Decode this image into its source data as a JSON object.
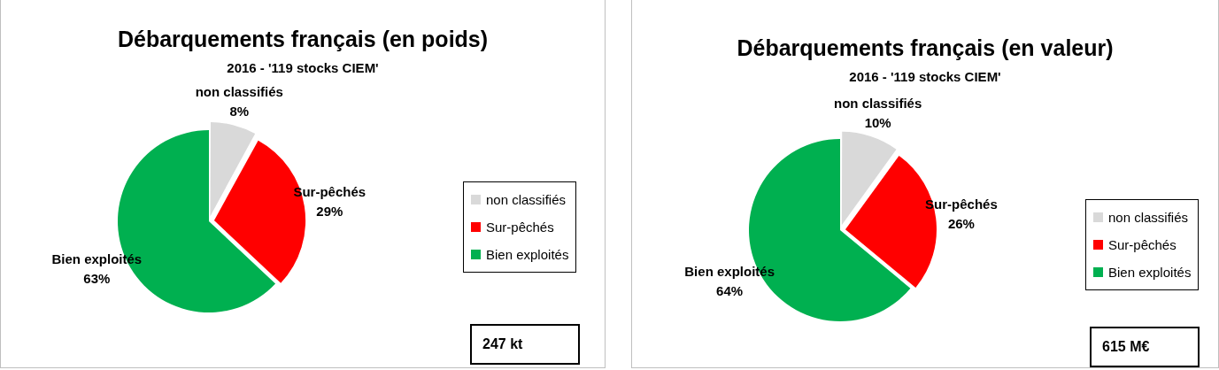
{
  "chart_data": [
    {
      "type": "pie",
      "title": "Débarquements français (en poids)",
      "subtitle": "2016 - '119 stocks CIEM'",
      "categories": [
        "non classifiés",
        "Sur-pêchés",
        "Bien exploités"
      ],
      "values": [
        8,
        29,
        63
      ],
      "value_labels": [
        "8%",
        "29%",
        "63%"
      ],
      "colors": [
        "#d9d9d9",
        "#ff0000",
        "#00b050"
      ],
      "legend": "right",
      "annotations": [
        "247 kt"
      ]
    },
    {
      "type": "pie",
      "title": "Débarquements français (en valeur)",
      "subtitle": "2016 - '119 stocks CIEM'",
      "categories": [
        "non classifiés",
        "Sur-pêchés",
        "Bien exploités"
      ],
      "values": [
        10,
        26,
        64
      ],
      "value_labels": [
        "10%",
        "26%",
        "64%"
      ],
      "colors": [
        "#d9d9d9",
        "#ff0000",
        "#00b050"
      ],
      "legend": "right",
      "annotations": [
        "615 M€"
      ]
    }
  ]
}
